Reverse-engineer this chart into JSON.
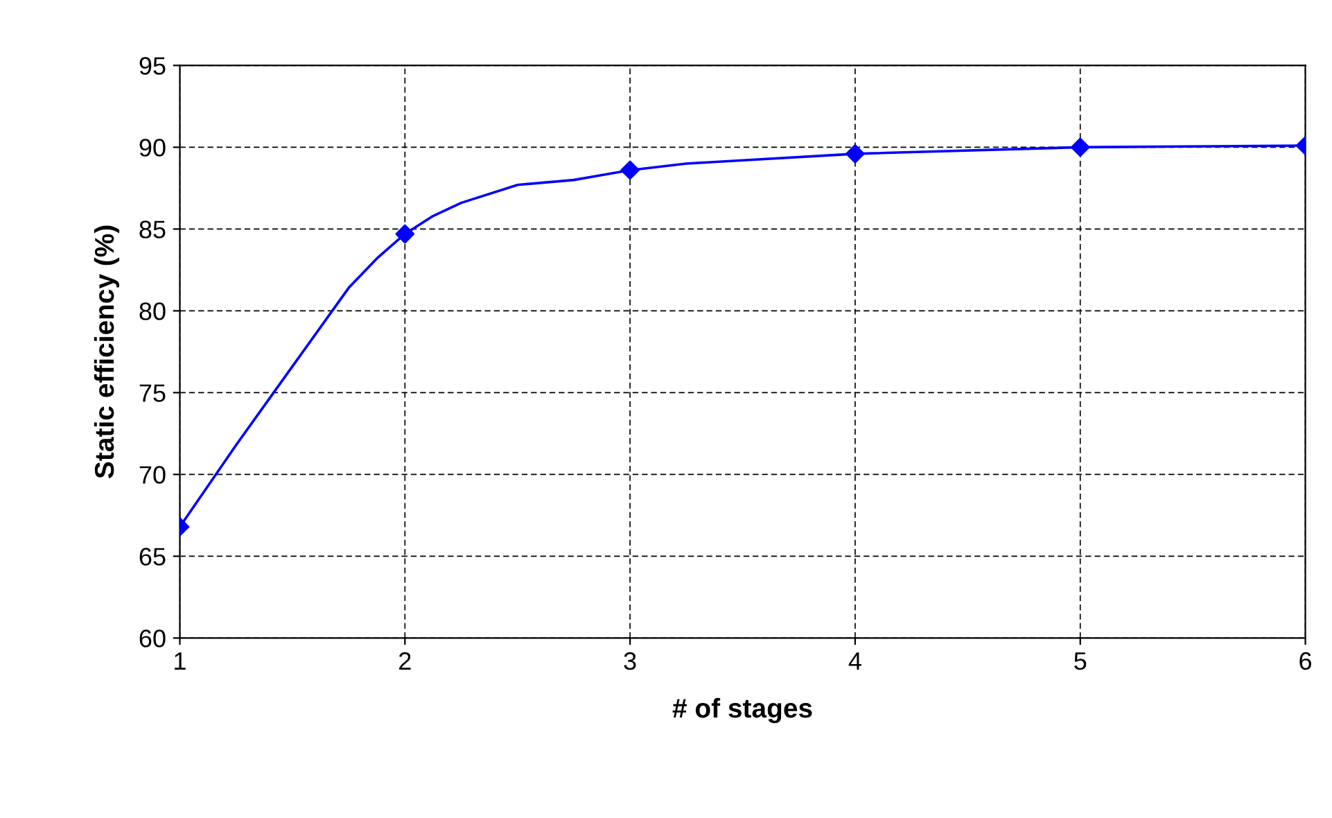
{
  "chart_data": {
    "type": "line",
    "xlabel": "# of stages",
    "ylabel": "Static efficiency (%)",
    "series": [
      {
        "color": "#0000ff",
        "marker": "none",
        "x": [
          1,
          1.25,
          1.5,
          1.75,
          1.875,
          2,
          2.125,
          2.25,
          2.5,
          2.75,
          3,
          3.25,
          4,
          5,
          6
        ],
        "values": [
          66.8,
          71.8,
          76.6,
          81.4,
          83.2,
          84.7,
          85.8,
          86.6,
          87.7,
          88.0,
          88.6,
          89.0,
          89.6,
          90.0,
          90.1
        ]
      },
      {
        "type": "scatter",
        "color": "#0000ff",
        "marker": "diamond",
        "x": [
          1,
          2,
          3,
          4,
          5,
          6
        ],
        "values": [
          66.8,
          84.7,
          88.6,
          89.6,
          90.0,
          90.1
        ]
      }
    ],
    "xlim": [
      1,
      6
    ],
    "xticks": [
      1,
      2,
      3,
      4,
      5,
      6
    ],
    "ylim": [
      60,
      95
    ],
    "yticks": [
      60,
      65,
      70,
      75,
      80,
      85,
      90,
      95
    ],
    "grid": true,
    "line_style": "solid"
  }
}
